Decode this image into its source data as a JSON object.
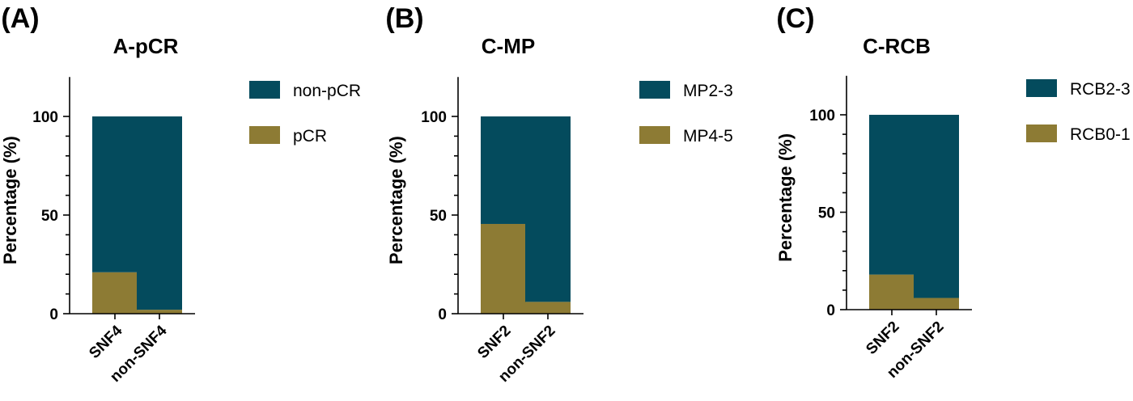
{
  "colors": {
    "primary": "#044b5d",
    "secondary": "#8d7b34"
  },
  "chart_data": [
    {
      "type": "bar",
      "stacked": true,
      "panel": "(A)",
      "title": "A-pCR",
      "ylabel": "Percentage (%)",
      "xlabel": "",
      "ylim": [
        0,
        120
      ],
      "yticks": [
        0,
        50,
        100
      ],
      "categories": [
        "SNF4",
        "non-SNF4"
      ],
      "series": [
        {
          "name": "pCR",
          "values": [
            21,
            2
          ]
        },
        {
          "name": "non-pCR",
          "values": [
            79,
            98
          ]
        }
      ],
      "legend": [
        "non-pCR",
        "pCR"
      ],
      "legend_position": "right"
    },
    {
      "type": "bar",
      "stacked": true,
      "panel": "(B)",
      "title": "C-MP",
      "ylabel": "Percentage (%)",
      "xlabel": "",
      "ylim": [
        0,
        120
      ],
      "yticks": [
        0,
        50,
        100
      ],
      "categories": [
        "SNF2",
        "non-SNF2"
      ],
      "series": [
        {
          "name": "MP4-5",
          "values": [
            45.5,
            6
          ]
        },
        {
          "name": "MP2-3",
          "values": [
            54.5,
            94
          ]
        }
      ],
      "legend": [
        "MP2-3",
        "MP4-5"
      ],
      "legend_position": "right"
    },
    {
      "type": "bar",
      "stacked": true,
      "panel": "(C)",
      "title": "C-RCB",
      "ylabel": "Percentage (%)",
      "xlabel": "",
      "ylim": [
        0,
        120
      ],
      "yticks": [
        0,
        50,
        100
      ],
      "categories": [
        "SNF2",
        "non-SNF2"
      ],
      "series": [
        {
          "name": "RCB0-1",
          "values": [
            18,
            6
          ]
        },
        {
          "name": "RCB2-3",
          "values": [
            82,
            94
          ]
        }
      ],
      "legend": [
        "RCB2-3",
        "RCB0-1"
      ],
      "legend_position": "right"
    }
  ]
}
